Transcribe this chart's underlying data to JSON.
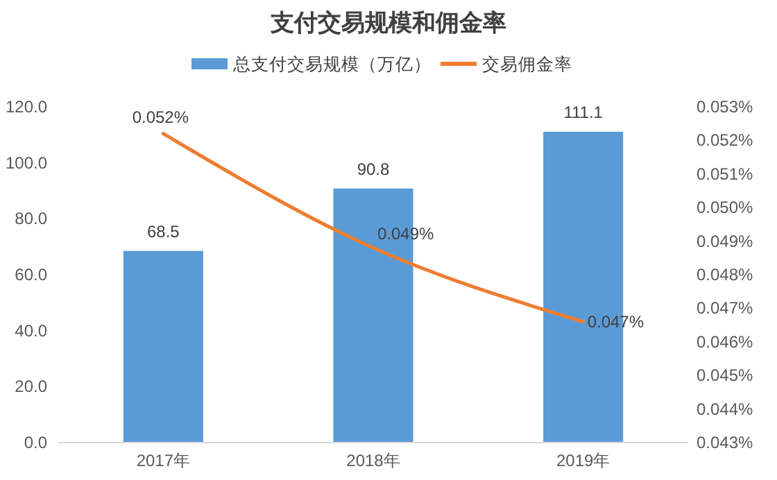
{
  "chart_data": {
    "type": "bar",
    "title": "支付交易规模和佣金率",
    "categories": [
      "2017年",
      "2018年",
      "2019年"
    ],
    "series": [
      {
        "name": "总支付交易规模（万亿）",
        "color": "#5b9bd5",
        "values": [
          68.5,
          90.8,
          111.1
        ],
        "value_labels": [
          "68.5",
          "90.8",
          "111.1"
        ]
      },
      {
        "name": "交易佣金率",
        "type": "line",
        "axis": "y2",
        "color": "#ed7d31",
        "values": [
          0.0522,
          0.0488,
          0.0466
        ],
        "value_labels": [
          "0.052%",
          "0.049%",
          "0.047%"
        ]
      }
    ],
    "ylim": [
      0,
      120
    ],
    "yticks": [
      {
        "value": 0,
        "label": "0.0"
      },
      {
        "value": 20,
        "label": "20.0"
      },
      {
        "value": 40,
        "label": "40.0"
      },
      {
        "value": 60,
        "label": "60.0"
      },
      {
        "value": 80,
        "label": "80.0"
      },
      {
        "value": 100,
        "label": "100.0"
      },
      {
        "value": 120,
        "label": "120.0"
      }
    ],
    "y2lim": [
      0.043,
      0.053
    ],
    "y2ticks": [
      {
        "value": 0.043,
        "label": "0.043%"
      },
      {
        "value": 0.044,
        "label": "0.044%"
      },
      {
        "value": 0.045,
        "label": "0.045%"
      },
      {
        "value": 0.046,
        "label": "0.046%"
      },
      {
        "value": 0.047,
        "label": "0.047%"
      },
      {
        "value": 0.048,
        "label": "0.048%"
      },
      {
        "value": 0.049,
        "label": "0.049%"
      },
      {
        "value": 0.05,
        "label": "0.050%"
      },
      {
        "value": 0.051,
        "label": "0.051%"
      },
      {
        "value": 0.052,
        "label": "0.052%"
      },
      {
        "value": 0.053,
        "label": "0.053%"
      }
    ],
    "legend": "top",
    "grid": false
  }
}
